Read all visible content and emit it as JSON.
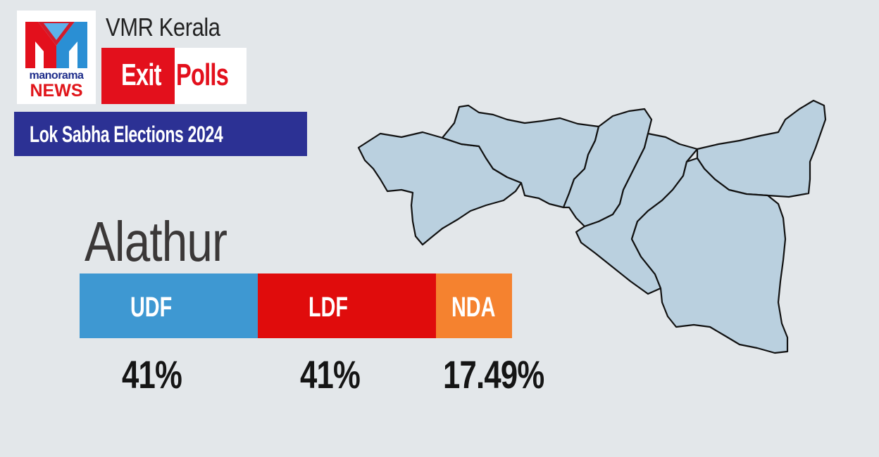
{
  "brand": {
    "logo_top": "manorama",
    "logo_bottom": "NEWS",
    "title": "VMR Kerala",
    "exit_word": "Exit",
    "polls_word": "Polls"
  },
  "banner": {
    "text": "Lok Sabha Elections 2024"
  },
  "constituency": "Alathur",
  "colors": {
    "background": "#e3e7ea",
    "udf": "#3e98d2",
    "ldf": "#e00c0c",
    "nda": "#f5822f",
    "banner": "#2c3194",
    "brand_red": "#e3101c",
    "map_fill": "#bad0df"
  },
  "chart_data": {
    "type": "bar",
    "orientation": "stacked-horizontal",
    "categories": [
      "UDF",
      "LDF",
      "NDA"
    ],
    "values": [
      41,
      41,
      17.49
    ],
    "value_labels": [
      "41%",
      "41%",
      "17.49%"
    ],
    "unit": "%",
    "legend": "none"
  }
}
